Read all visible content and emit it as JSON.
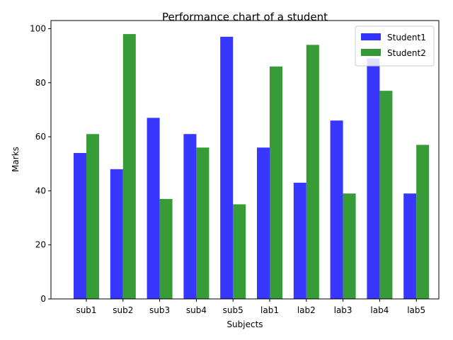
{
  "chart_data": {
    "type": "bar",
    "title": "Performance chart of a student",
    "xlabel": "Subjects",
    "ylabel": "Marks",
    "categories": [
      "sub1",
      "sub2",
      "sub3",
      "sub4",
      "sub5",
      "lab1",
      "lab2",
      "lab3",
      "lab4",
      "lab5"
    ],
    "series": [
      {
        "name": "Student1",
        "color": "#3333ff",
        "values": [
          54,
          48,
          67,
          61,
          97,
          56,
          43,
          66,
          89,
          39
        ]
      },
      {
        "name": "Student2",
        "color": "#339933",
        "values": [
          61,
          98,
          37,
          56,
          35,
          86,
          94,
          39,
          77,
          57
        ]
      }
    ],
    "ylim": [
      0,
      103
    ],
    "yticks": [
      0,
      20,
      40,
      60,
      80,
      100
    ],
    "legend": "top-right",
    "grid": false
  }
}
